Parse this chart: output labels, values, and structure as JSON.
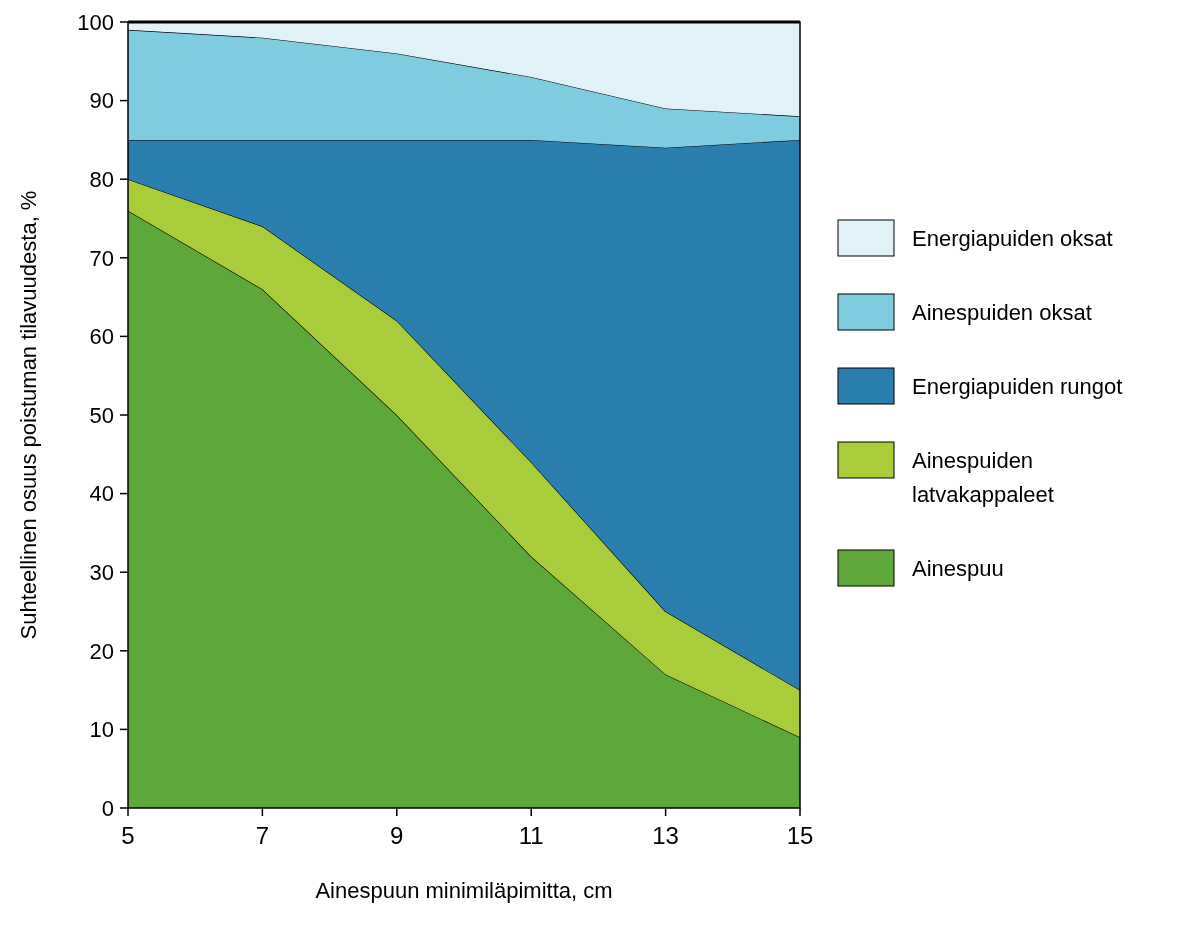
{
  "chart_data": {
    "type": "area",
    "stacked": true,
    "xlabel": "Ainespuun minimiläpimitta, cm",
    "ylabel": "Suhteellinen osuus poistuman tilavuudesta, %",
    "x": [
      5,
      7,
      9,
      11,
      13,
      15
    ],
    "xlim": [
      5,
      15
    ],
    "xticks": [
      5,
      7,
      9,
      11,
      13,
      15
    ],
    "ylim": [
      0,
      100
    ],
    "yticks": [
      0,
      10,
      20,
      30,
      40,
      50,
      60,
      70,
      80,
      90,
      100
    ],
    "legend": "right",
    "grid": false,
    "series": [
      {
        "name": "Ainespuu",
        "color": "#5ea83a",
        "values": [
          76,
          66,
          50,
          32,
          17,
          9
        ]
      },
      {
        "name": "Ainespuiden latvakappaleet",
        "color": "#a8cc3a",
        "values": [
          4,
          8,
          12,
          12,
          8,
          6
        ]
      },
      {
        "name": "Energiapuiden rungot",
        "color": "#2a7fae",
        "values": [
          5,
          11,
          23,
          41,
          59,
          70
        ]
      },
      {
        "name": "Ainespuiden oksat",
        "color": "#7fcbe0",
        "values": [
          14,
          13,
          11,
          8,
          5,
          3
        ]
      },
      {
        "name": "Energiapuiden oksat",
        "color": "#e0f2f8",
        "values": [
          1,
          2,
          4,
          7,
          11,
          12
        ]
      }
    ]
  }
}
